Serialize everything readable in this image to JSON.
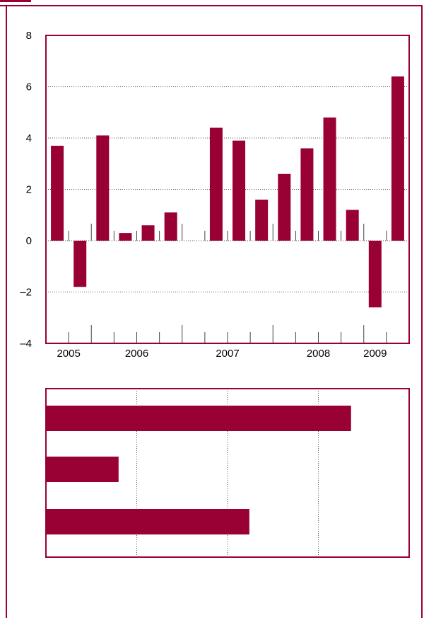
{
  "colors": {
    "bar": "#990033",
    "frame": "#990033",
    "grid": "#555555"
  },
  "chart_data": [
    {
      "type": "bar",
      "title": "",
      "xlabel": "",
      "ylabel": "",
      "ylim": [
        -4,
        8
      ],
      "yticks": [
        "8",
        "6",
        "4",
        "2",
        "0",
        "–2",
        "–4"
      ],
      "grid": "horizontal dotted at 2, 4, 6 and -2",
      "x_group_labels": [
        "2005",
        "2006",
        "2007",
        "2008",
        "2009"
      ],
      "series": [
        {
          "values": [
            3.7,
            -1.8,
            4.1,
            0.3,
            0.6,
            1.1,
            null,
            4.4,
            3.9,
            1.6,
            2.6,
            3.6,
            4.8,
            1.2,
            -2.6,
            6.4
          ]
        }
      ]
    },
    {
      "type": "bar",
      "orientation": "horizontal",
      "title": "",
      "grid": "vertical dotted",
      "series": [
        {
          "values": [
            0.84,
            0.2,
            0.56
          ]
        }
      ]
    }
  ]
}
